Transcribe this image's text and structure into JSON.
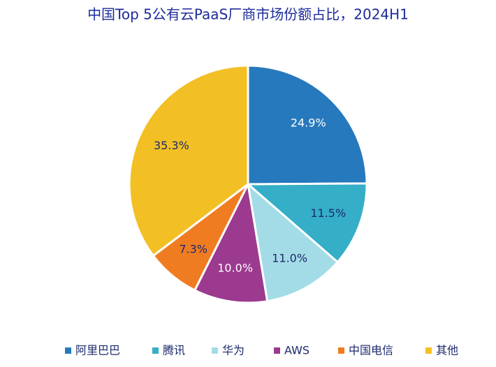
{
  "chart_data": {
    "type": "pie",
    "title": "中国Top 5公有云PaaS厂商市场份额占比，2024H1",
    "categories": [
      "阿里巴巴",
      "腾讯",
      "华为",
      "AWS",
      "中国电信",
      "其他"
    ],
    "values": [
      24.9,
      11.5,
      11.0,
      10.0,
      7.3,
      35.3
    ],
    "value_labels": [
      "24.9%",
      "11.5%",
      "11.0%",
      "10.0%",
      "7.3%",
      "35.3%"
    ],
    "colors": [
      "#2779bd",
      "#35aec8",
      "#a3dce6",
      "#9b3a8f",
      "#f07c22",
      "#f2c024"
    ],
    "legend": "bottom"
  }
}
